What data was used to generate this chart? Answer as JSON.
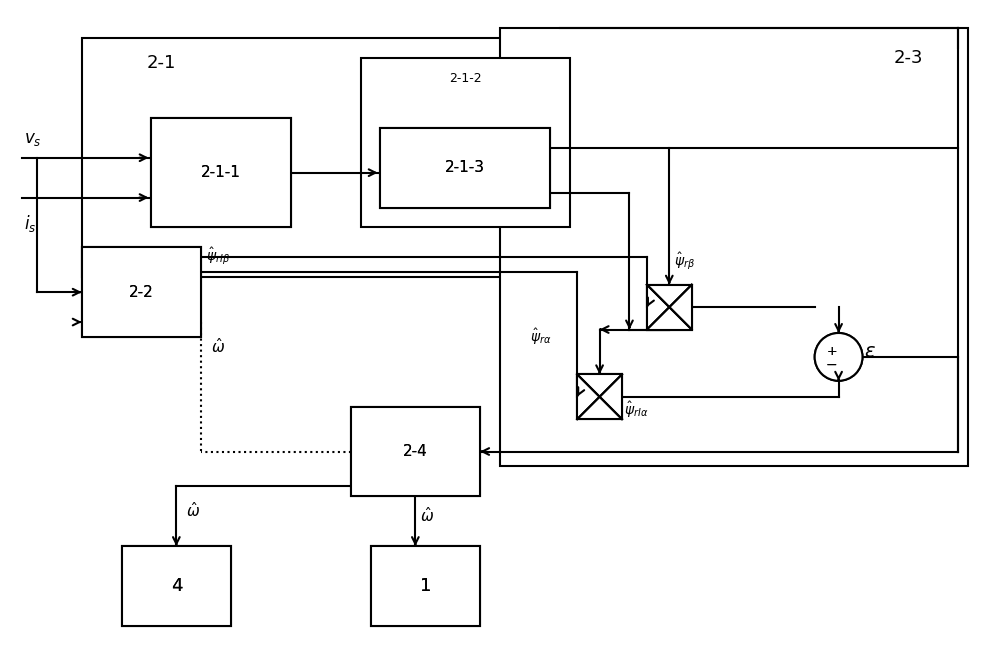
{
  "bg_color": "#ffffff",
  "line_color": "#000000",
  "box_edge_color": "#000000",
  "fig_width": 10.0,
  "fig_height": 6.67,
  "dpi": 100
}
